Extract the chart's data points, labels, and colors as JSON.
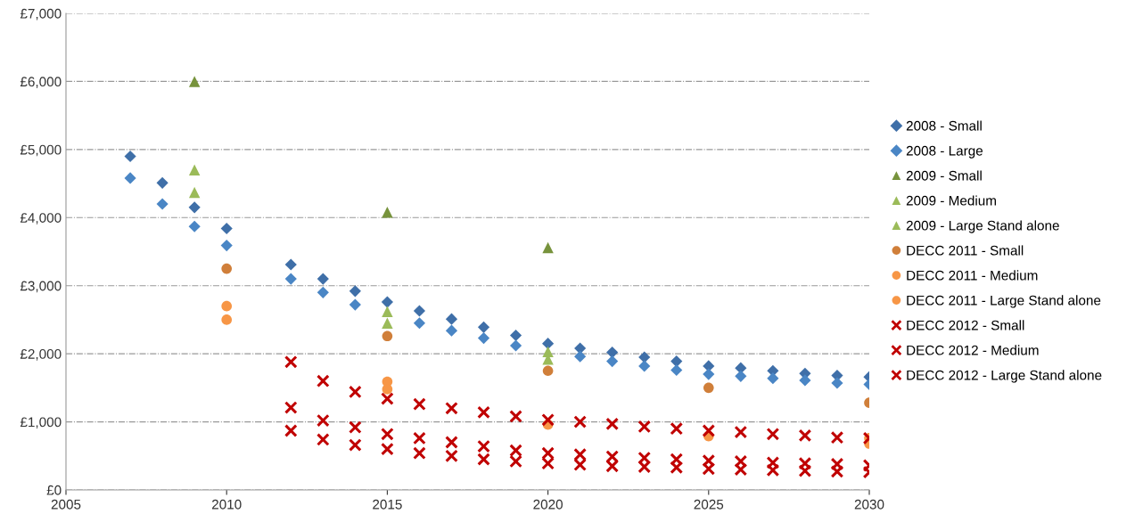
{
  "chart_data": {
    "type": "scatter",
    "xlim": [
      2005,
      2030
    ],
    "xticks": [
      2005,
      2010,
      2015,
      2020,
      2025,
      2030
    ],
    "ylim": [
      0,
      7000
    ],
    "yticks": [
      {
        "value": 0,
        "label": "£0"
      },
      {
        "value": 1000,
        "label": "£1,000"
      },
      {
        "value": 2000,
        "label": "£2,000"
      },
      {
        "value": 3000,
        "label": "£3,000"
      },
      {
        "value": 4000,
        "label": "£4,000"
      },
      {
        "value": 5000,
        "label": "£5,000"
      },
      {
        "value": 6000,
        "label": "£6,000"
      },
      {
        "value": 7000,
        "label": "£7,000"
      }
    ],
    "grid": "y",
    "legend": "right",
    "series": [
      {
        "name": "2008 - Small",
        "color": "#3f6fa8",
        "marker": "diamond",
        "x": [
          2007,
          2008,
          2009,
          2010,
          2012,
          2013,
          2014,
          2015,
          2016,
          2017,
          2018,
          2019,
          2020,
          2021,
          2022,
          2023,
          2024,
          2025,
          2026,
          2027,
          2028,
          2029,
          2030
        ],
        "values": [
          4900,
          4510,
          4150,
          3840,
          3310,
          3100,
          2920,
          2760,
          2630,
          2510,
          2390,
          2270,
          2150,
          2080,
          2020,
          1950,
          1890,
          1820,
          1790,
          1750,
          1710,
          1680,
          1660
        ]
      },
      {
        "name": "2008 - Large",
        "color": "#4a86c5",
        "marker": "diamond",
        "x": [
          2007,
          2008,
          2009,
          2010,
          2012,
          2013,
          2014,
          2015,
          2016,
          2017,
          2018,
          2019,
          2020,
          2021,
          2022,
          2023,
          2024,
          2025,
          2026,
          2027,
          2028,
          2029,
          2030
        ],
        "values": [
          4580,
          4200,
          3870,
          3590,
          3100,
          2900,
          2720,
          null,
          2450,
          2340,
          2230,
          2120,
          null,
          1960,
          1890,
          1820,
          1760,
          1700,
          1670,
          1640,
          1610,
          1570,
          1550
        ]
      },
      {
        "name": "2009 - Small",
        "color": "#77933c",
        "marker": "triangle",
        "x": [
          2009,
          2015,
          2020
        ],
        "values": [
          6000,
          4080,
          3560
        ]
      },
      {
        "name": "2009 - Medium",
        "color": "#9bbb59",
        "marker": "triangle",
        "x": [
          2009,
          2015,
          2020
        ],
        "values": [
          4700,
          2620,
          2030
        ]
      },
      {
        "name": "2009 - Large Stand alone",
        "color": "#9bbb59",
        "marker": "triangle",
        "x": [
          2009,
          2015,
          2020
        ],
        "values": [
          4370,
          2450,
          1920
        ]
      },
      {
        "name": "DECC 2011 - Small",
        "color": "#d07f3a",
        "marker": "circle",
        "x": [
          2010,
          2015,
          2020,
          2025,
          2030
        ],
        "values": [
          3250,
          2260,
          1750,
          1500,
          1280
        ]
      },
      {
        "name": "DECC 2011 - Medium",
        "color": "#f79646",
        "marker": "circle",
        "x": [
          2010,
          2015,
          2020,
          2025,
          2030
        ],
        "values": [
          2700,
          1590,
          null,
          null,
          760
        ]
      },
      {
        "name": "DECC 2011 - Large Stand alone",
        "color": "#f79646",
        "marker": "circle",
        "x": [
          2010,
          2015,
          2020,
          2025,
          2030
        ],
        "values": [
          2500,
          1480,
          960,
          790,
          680
        ]
      },
      {
        "name": "DECC 2012 - Small",
        "color": "#c00000",
        "marker": "cross",
        "x": [
          2012,
          2013,
          2014,
          2015,
          2016,
          2017,
          2018,
          2019,
          2020,
          2021,
          2022,
          2023,
          2024,
          2025,
          2026,
          2027,
          2028,
          2029,
          2030
        ],
        "values": [
          1880,
          1600,
          1440,
          1340,
          1260,
          1200,
          1140,
          1080,
          1030,
          1000,
          970,
          930,
          900,
          870,
          850,
          820,
          800,
          770,
          760
        ]
      },
      {
        "name": "DECC 2012 - Medium",
        "color": "#c00000",
        "marker": "cross",
        "x": [
          2012,
          2013,
          2014,
          2015,
          2016,
          2017,
          2018,
          2019,
          2020,
          2021,
          2022,
          2023,
          2024,
          2025,
          2026,
          2027,
          2028,
          2029,
          2030
        ],
        "values": [
          1210,
          1020,
          920,
          820,
          760,
          700,
          640,
          580,
          540,
          520,
          490,
          470,
          450,
          430,
          420,
          400,
          390,
          380,
          360
        ]
      },
      {
        "name": "DECC 2012 - Large Stand alone",
        "color": "#c00000",
        "marker": "cross",
        "x": [
          2012,
          2013,
          2014,
          2015,
          2016,
          2017,
          2018,
          2019,
          2020,
          2021,
          2022,
          2023,
          2024,
          2025,
          2026,
          2027,
          2028,
          2029,
          2030
        ],
        "values": [
          870,
          740,
          660,
          600,
          540,
          500,
          450,
          420,
          390,
          370,
          350,
          340,
          330,
          310,
          300,
          290,
          280,
          270,
          260
        ]
      }
    ]
  }
}
